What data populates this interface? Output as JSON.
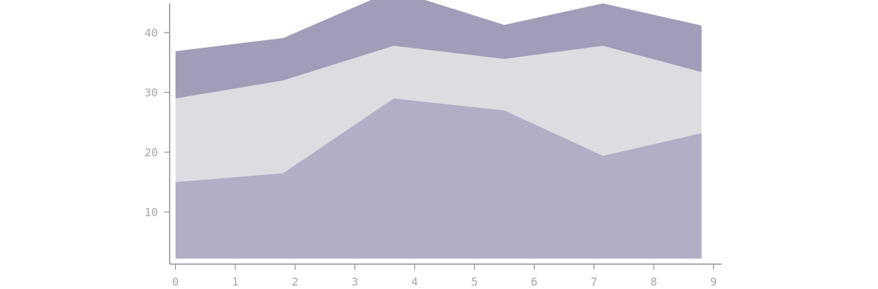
{
  "chart_data": {
    "type": "area",
    "stacked": true,
    "title": "",
    "xlabel": "",
    "ylabel": "",
    "x": [
      0,
      1.8,
      3.65,
      5.5,
      7.15,
      8.8
    ],
    "series": [
      {
        "values": [
          12.8,
          14.3,
          26.8,
          24.8,
          17.2,
          21.0
        ],
        "color": "#b3aec6"
      },
      {
        "values": [
          14.0,
          15.5,
          8.8,
          8.6,
          18.4,
          10.2
        ],
        "color": "#dcdce1"
      },
      {
        "values": [
          7.9,
          7.1,
          9.3,
          5.7,
          7.1,
          7.8
        ],
        "color": "#a29cb8"
      }
    ],
    "baseline": 2.2,
    "xlim": [
      0,
      9
    ],
    "ylim": [
      2.2,
      45
    ],
    "xticks": [
      "0",
      "1",
      "2",
      "3",
      "4",
      "5",
      "6",
      "7",
      "8",
      "9"
    ],
    "yticks": [
      "10",
      "20",
      "30",
      "40"
    ],
    "grid": false,
    "legend": "none"
  }
}
